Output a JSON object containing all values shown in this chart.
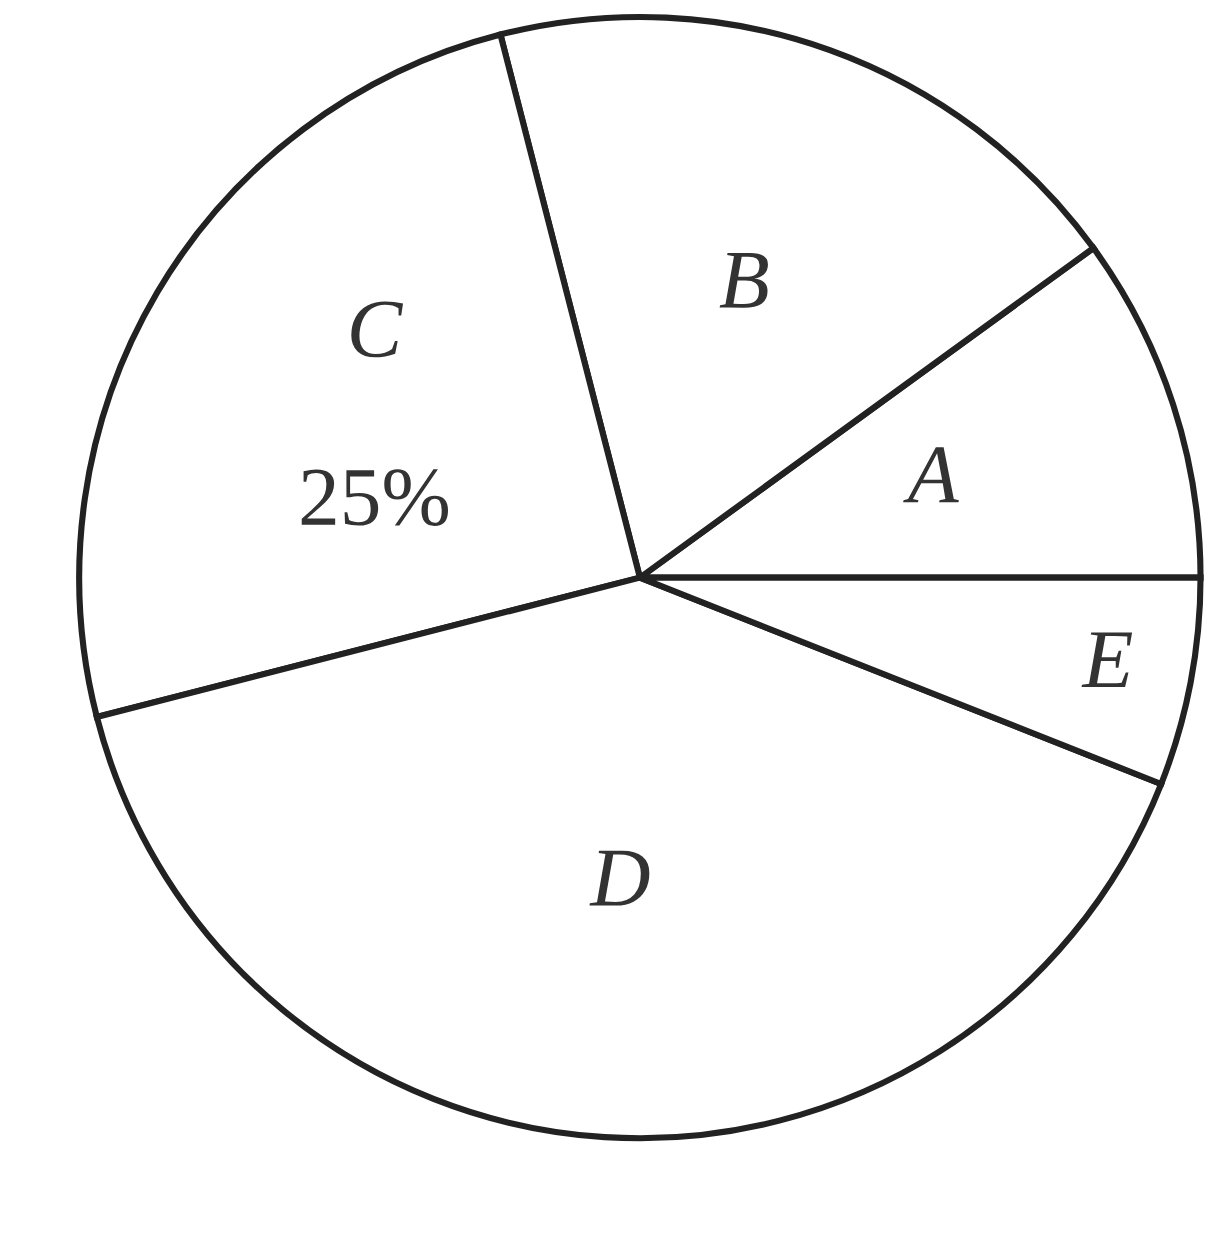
{
  "chart_data": {
    "type": "pie",
    "categories": [
      "A",
      "B",
      "C",
      "D",
      "E"
    ],
    "values": [
      10,
      19,
      25,
      40,
      6
    ],
    "colors": [
      "#ffffff",
      "#ffffff",
      "#ffffff",
      "#ffffff",
      "#ffffff"
    ],
    "value_labels": [
      null,
      null,
      "25%",
      null,
      null
    ],
    "legend": false
  }
}
